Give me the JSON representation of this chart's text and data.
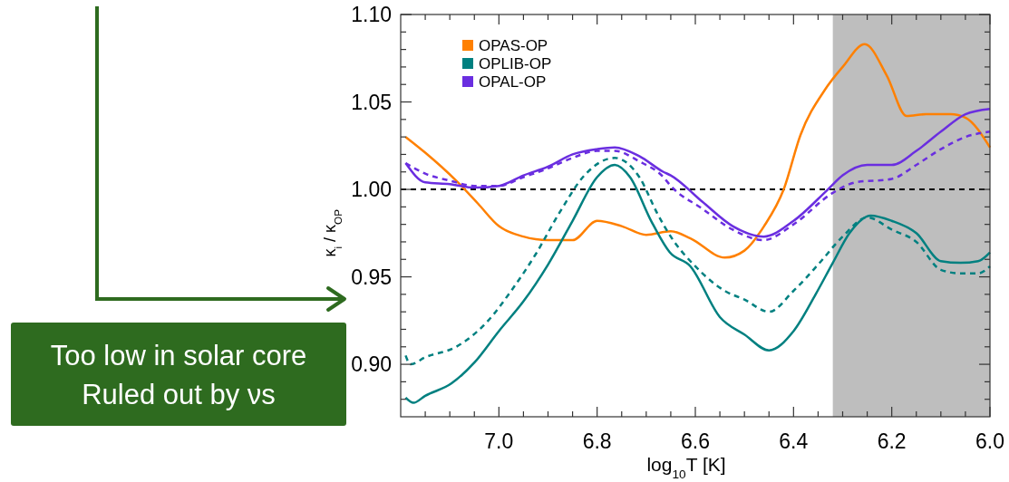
{
  "chart_data": {
    "type": "line",
    "xlabel": "log$_{10}$T [K]",
    "ylabel": "κ$_{i}$ / κ$_{OP}$",
    "xlim": [
      7.2,
      6.0
    ],
    "xticks": [
      {
        "value": 7.15,
        "label": null
      },
      {
        "value": 7.1,
        "label": null
      },
      {
        "value": 7.05,
        "label": null
      },
      {
        "value": 7.0,
        "label": "7.0"
      },
      {
        "value": 6.95,
        "label": null
      },
      {
        "value": 6.9,
        "label": null
      },
      {
        "value": 6.85,
        "label": null
      },
      {
        "value": 6.8,
        "label": "6.8"
      },
      {
        "value": 6.75,
        "label": null
      },
      {
        "value": 6.7,
        "label": null
      },
      {
        "value": 6.65,
        "label": null
      },
      {
        "value": 6.6,
        "label": "6.6"
      },
      {
        "value": 6.55,
        "label": null
      },
      {
        "value": 6.5,
        "label": null
      },
      {
        "value": 6.45,
        "label": null
      },
      {
        "value": 6.4,
        "label": "6.4"
      },
      {
        "value": 6.35,
        "label": null
      },
      {
        "value": 6.3,
        "label": null
      },
      {
        "value": 6.25,
        "label": null
      },
      {
        "value": 6.2,
        "label": "6.2"
      },
      {
        "value": 6.15,
        "label": null
      },
      {
        "value": 6.1,
        "label": null
      },
      {
        "value": 6.05,
        "label": null
      },
      {
        "value": 6.0,
        "label": "6.0"
      }
    ],
    "ylim": [
      0.87,
      1.1
    ],
    "yticks": [
      {
        "value": 0.88,
        "label": null
      },
      {
        "value": 0.89,
        "label": null
      },
      {
        "value": 0.9,
        "label": "0.90"
      },
      {
        "value": 0.91,
        "label": null
      },
      {
        "value": 0.92,
        "label": null
      },
      {
        "value": 0.93,
        "label": null
      },
      {
        "value": 0.94,
        "label": null
      },
      {
        "value": 0.95,
        "label": "0.95"
      },
      {
        "value": 0.96,
        "label": null
      },
      {
        "value": 0.97,
        "label": null
      },
      {
        "value": 0.98,
        "label": null
      },
      {
        "value": 0.99,
        "label": null
      },
      {
        "value": 1.0,
        "label": "1.00"
      },
      {
        "value": 1.01,
        "label": null
      },
      {
        "value": 1.02,
        "label": null
      },
      {
        "value": 1.03,
        "label": null
      },
      {
        "value": 1.04,
        "label": null
      },
      {
        "value": 1.05,
        "label": "1.05"
      },
      {
        "value": 1.06,
        "label": null
      },
      {
        "value": 1.07,
        "label": null
      },
      {
        "value": 1.08,
        "label": null
      },
      {
        "value": 1.09,
        "label": null
      },
      {
        "value": 1.1,
        "label": "1.10"
      }
    ],
    "grid": false,
    "legend": "top left",
    "bands": [
      {
        "axis": "x",
        "from": 6.32,
        "to": 6.0,
        "color": "#bebebe"
      }
    ],
    "ref_lines": [
      {
        "axis": "y",
        "value": 1.0,
        "color": "#000000",
        "line_style": "dashed"
      }
    ],
    "annotations": [
      "Too low in solar core\nRuled out by νs"
    ],
    "series": [
      {
        "name": "OPAS-OP",
        "color": "#ff8000",
        "line_style": "solid",
        "x": [
          7.19,
          7.15,
          7.087,
          7.043,
          7.0,
          6.95,
          6.9,
          6.85,
          6.8,
          6.75,
          6.7,
          6.65,
          6.61,
          6.54,
          6.5,
          6.46,
          6.42,
          6.386,
          6.336,
          6.3,
          6.255,
          6.21,
          6.17,
          6.13,
          6.08,
          6.05,
          6.0
        ],
        "values": [
          1.03,
          1.021,
          1.005,
          0.992,
          0.979,
          0.973,
          0.971,
          0.971,
          0.982,
          0.979,
          0.974,
          0.976,
          0.972,
          0.961,
          0.965,
          0.979,
          1.0,
          1.031,
          1.057,
          1.07,
          1.083,
          1.065,
          1.042,
          1.043,
          1.043,
          1.041,
          1.024
        ]
      },
      {
        "name": "OPLIB-OP",
        "color": "#008080",
        "line_style": "solid",
        "x": [
          7.19,
          7.174,
          7.15,
          7.097,
          7.05,
          7.0,
          6.95,
          6.9,
          6.85,
          6.8,
          6.764,
          6.733,
          6.69,
          6.652,
          6.61,
          6.55,
          6.5,
          6.45,
          6.4,
          6.355,
          6.32,
          6.286,
          6.243,
          6.2,
          6.15,
          6.1,
          6.06,
          6.024,
          6.0
        ],
        "values": [
          0.881,
          0.878,
          0.882,
          0.889,
          0.901,
          0.919,
          0.936,
          0.957,
          0.982,
          1.007,
          1.014,
          1.007,
          0.982,
          0.964,
          0.956,
          0.927,
          0.917,
          0.908,
          0.919,
          0.94,
          0.958,
          0.975,
          0.985,
          0.982,
          0.975,
          0.959,
          0.958,
          0.959,
          0.964
        ]
      },
      {
        "color": "#008080",
        "line_style": "dashed",
        "x": [
          7.19,
          7.18,
          7.15,
          7.087,
          7.025,
          6.975,
          6.925,
          6.876,
          6.826,
          6.764,
          6.714,
          6.677,
          6.65,
          6.6,
          6.54,
          6.5,
          6.45,
          6.4,
          6.35,
          6.3,
          6.25,
          6.2,
          6.15,
          6.1,
          6.06,
          6.024,
          6.0
        ],
        "values": [
          0.905,
          0.9,
          0.904,
          0.91,
          0.924,
          0.942,
          0.963,
          0.987,
          1.008,
          1.018,
          1.007,
          0.986,
          0.973,
          0.956,
          0.942,
          0.937,
          0.93,
          0.942,
          0.957,
          0.973,
          0.984,
          0.977,
          0.97,
          0.954,
          0.952,
          0.952,
          0.956
        ]
      },
      {
        "name": "OPAL-OP",
        "color": "#6a2ee0",
        "line_style": "solid",
        "x": [
          7.19,
          7.15,
          7.1,
          7.05,
          7.0,
          6.95,
          6.9,
          6.85,
          6.8,
          6.764,
          6.714,
          6.665,
          6.65,
          6.586,
          6.524,
          6.461,
          6.4,
          6.33,
          6.3,
          6.25,
          6.2,
          6.15,
          6.1,
          6.05,
          6.0
        ],
        "values": [
          1.015,
          1.004,
          1.003,
          1.001,
          1.002,
          1.008,
          1.013,
          1.02,
          1.023,
          1.024,
          1.019,
          1.01,
          1.008,
          0.993,
          0.979,
          0.973,
          0.982,
          1.0,
          1.008,
          1.014,
          1.014,
          1.022,
          1.033,
          1.043,
          1.046
        ]
      },
      {
        "color": "#6a2ee0",
        "line_style": "dashed",
        "x": [
          7.19,
          7.15,
          7.1,
          7.05,
          7.0,
          6.95,
          6.9,
          6.85,
          6.8,
          6.764,
          6.714,
          6.665,
          6.65,
          6.586,
          6.524,
          6.461,
          6.4,
          6.32,
          6.274,
          6.2,
          6.15,
          6.1,
          6.05,
          6.0
        ],
        "values": [
          1.015,
          1.009,
          1.005,
          1.002,
          1.002,
          1.007,
          1.012,
          1.018,
          1.022,
          1.022,
          1.016,
          1.007,
          1.002,
          0.989,
          0.977,
          0.971,
          0.98,
          0.998,
          1.004,
          1.006,
          1.014,
          1.023,
          1.03,
          1.033
        ]
      }
    ]
  }
}
